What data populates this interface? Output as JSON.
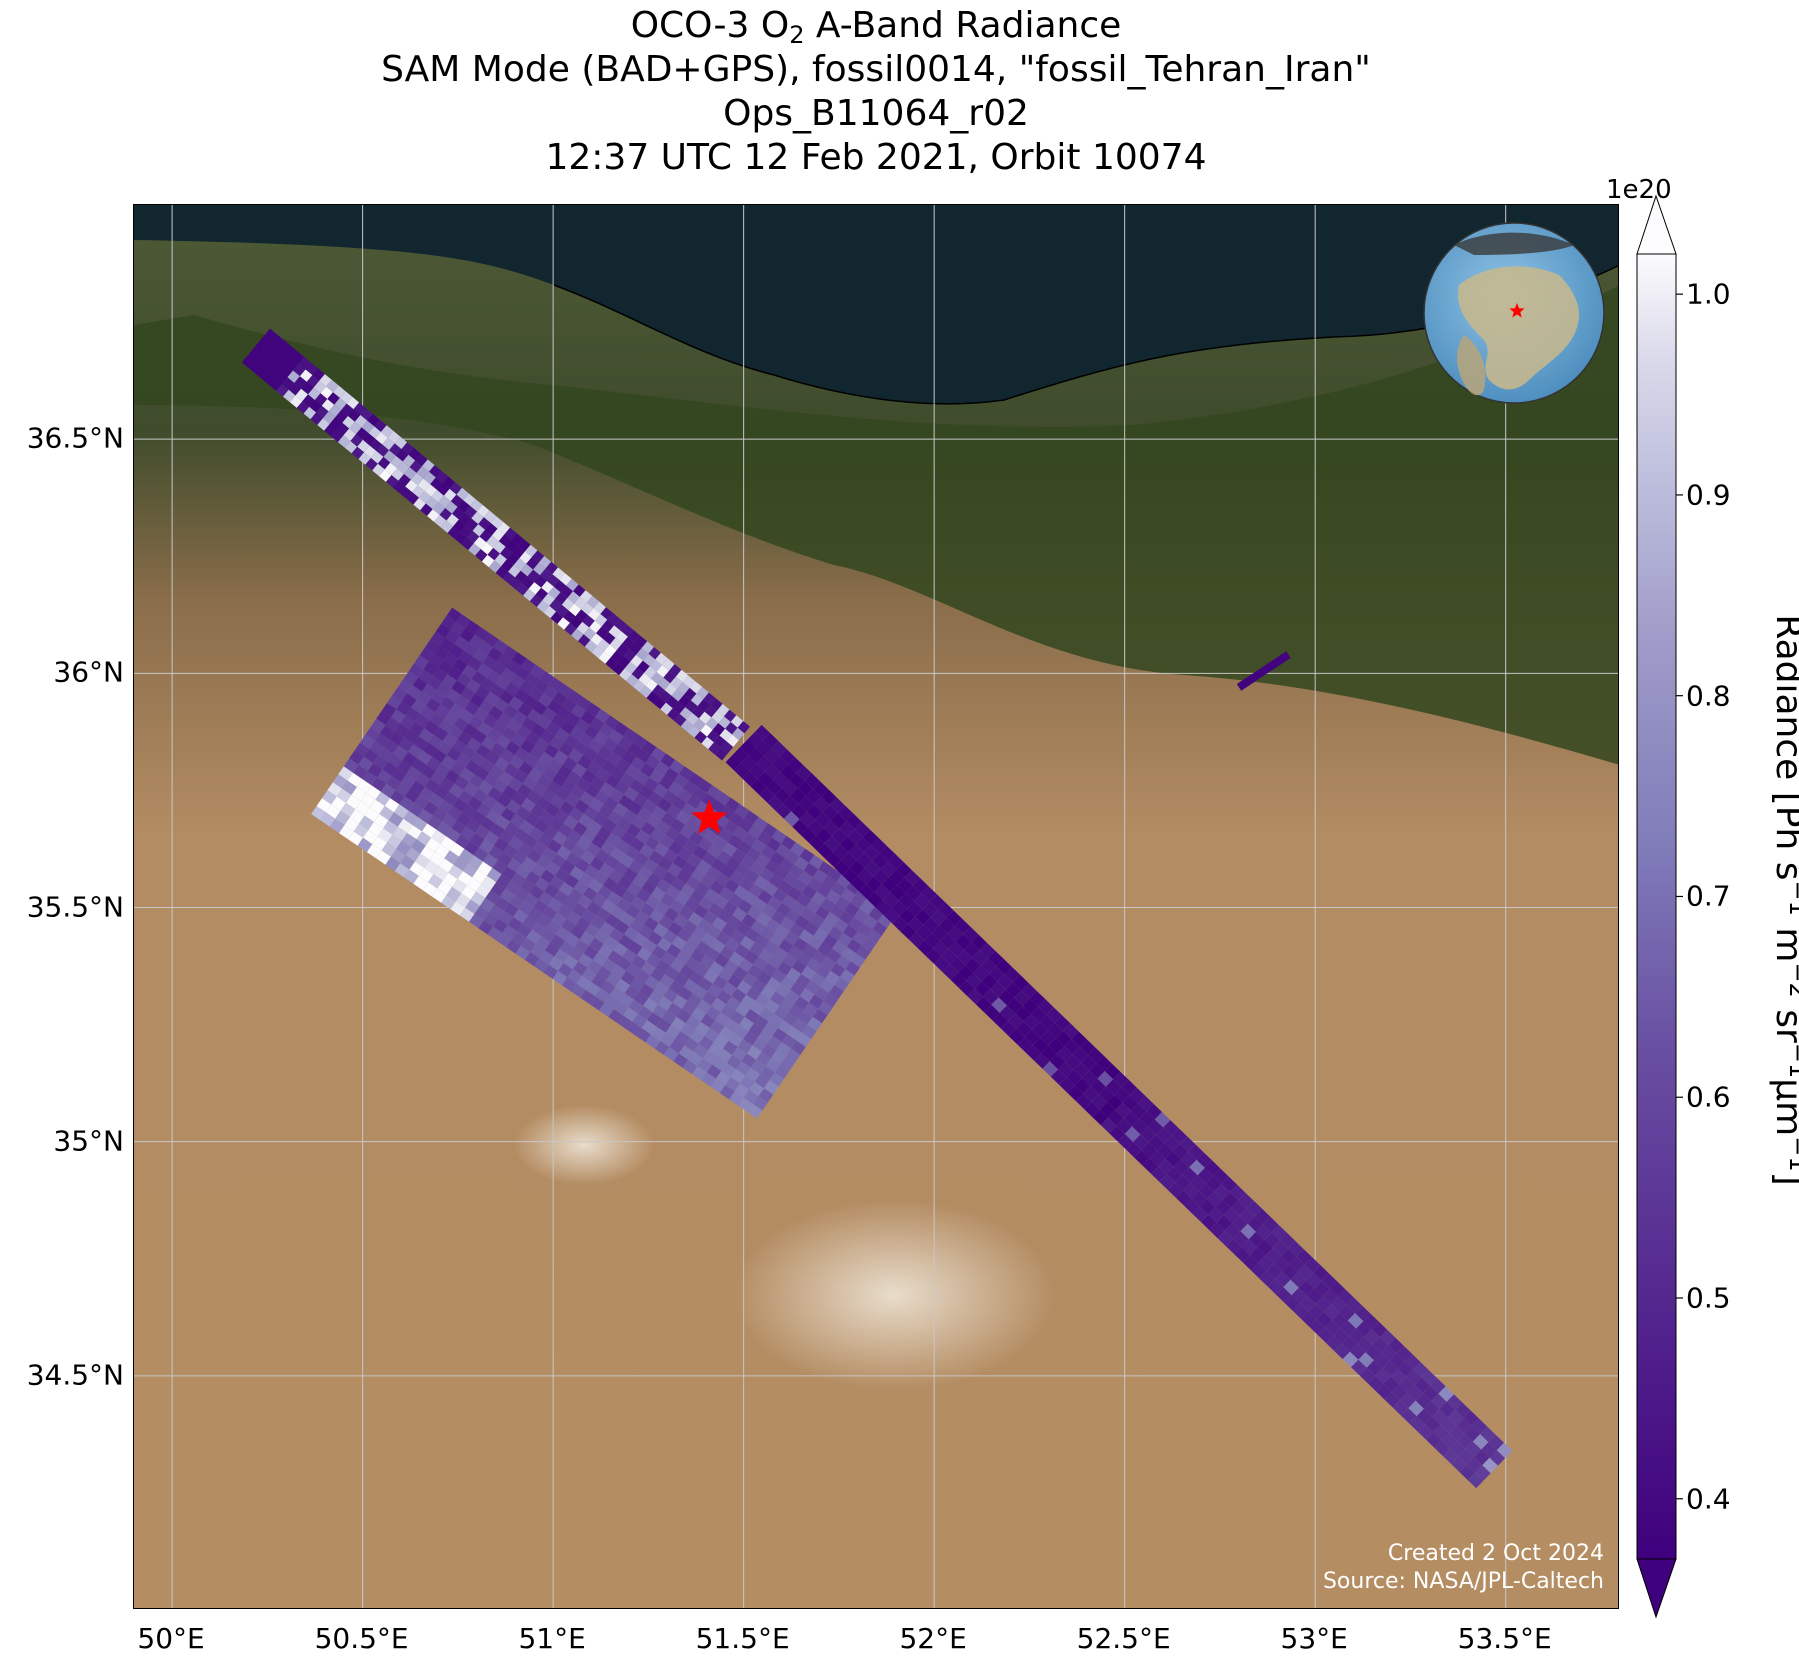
{
  "title": {
    "line1_prefix": "OCO-3 O",
    "line1_sub": "2",
    "line1_suffix": " A-Band Radiance",
    "line2": "SAM Mode (BAD+GPS), fossil0014, \"fossil_Tehran_Iran\"",
    "line3": "Ops_B11064_r02",
    "line4": "12:37 UTC 12 Feb 2021, Orbit 10074"
  },
  "axes": {
    "x_ticks": [
      "50°E",
      "50.5°E",
      "51°E",
      "51.5°E",
      "52°E",
      "52.5°E",
      "53°E",
      "53.5°E"
    ],
    "y_ticks": [
      "36.5°N",
      "36°N",
      "35.5°N",
      "35°N",
      "34.5°N"
    ],
    "lon_range": [
      49.9,
      53.8
    ],
    "lat_range": [
      34.0,
      37.0
    ],
    "grid": true
  },
  "colorbar": {
    "exponent": "1e20",
    "ticks": [
      "1.0",
      "0.9",
      "0.8",
      "0.7",
      "0.6",
      "0.5",
      "0.4"
    ],
    "range": [
      0.37,
      1.02
    ],
    "colormap": "Purples_r",
    "extend": "both",
    "label_parts": [
      "Radiance [Ph s",
      "−1",
      " m",
      "−2",
      " sr",
      "−1",
      "μm",
      "−1",
      "]"
    ]
  },
  "target": {
    "name": "fossil_Tehran_Iran",
    "marker": "red-star",
    "lon": 51.41,
    "lat": 35.69,
    "color": "#ff0000"
  },
  "credits": {
    "line1": "Created 2 Oct 2024",
    "line2": "Source: NASA/JPL-Caltech"
  },
  "chart_data": {
    "type": "heatmap",
    "variable": "O2 A-Band Radiance",
    "units": "Ph s-1 m-2 sr-1 μm-1 (×1e20)",
    "swaths": [
      {
        "name": "north",
        "lon_lat_start": [
          50.22,
          36.7
        ],
        "lon_lat_end": [
          51.48,
          35.85
        ],
        "typical_value_range": [
          0.38,
          1.02
        ]
      },
      {
        "name": "south",
        "lon_lat_start": [
          50.55,
          35.92
        ],
        "lon_lat_end": [
          51.72,
          35.27
        ],
        "typical_value_range": [
          0.45,
          0.75
        ]
      },
      {
        "name": "east",
        "lon_lat_start": [
          51.5,
          35.85
        ],
        "lon_lat_end": [
          53.47,
          34.3
        ],
        "typical_value_range": [
          0.38,
          0.62
        ]
      },
      {
        "name": "small-segment",
        "lon_lat_start": [
          52.8,
          35.97
        ],
        "lon_lat_end": [
          52.93,
          36.04
        ],
        "typical_value_range": [
          0.38,
          0.42
        ]
      }
    ]
  }
}
